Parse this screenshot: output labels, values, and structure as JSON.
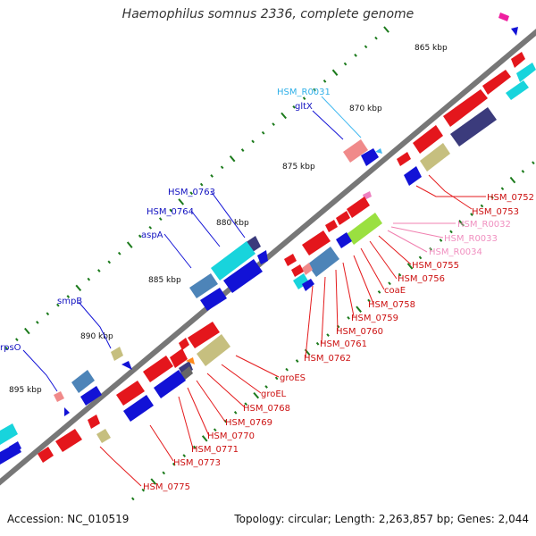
{
  "title": "Haemophilus somnus 2336, complete genome",
  "footer": {
    "accession": "Accession: NC_010519",
    "summary": "Topology: circular; Length: 2,263,857 bp; Genes: 2,044"
  },
  "colors": {
    "backbone": "#777777",
    "tick": "#1b7a1b",
    "red": "#e4161c",
    "blue": "#1212d6",
    "cyan": "#18d4dc",
    "steel": "#4d84b8",
    "navy": "#3b3b7c",
    "khaki": "#c6bf7f",
    "pink_gene": "#f08a8a",
    "rna_line": "#f080b0",
    "trna_line": "#40b8f0",
    "magenta": "#ee1fa0",
    "lime": "#9ae040"
  },
  "ticks": [
    "865 kbp",
    "870 kbp",
    "875 kbp",
    "880 kbp",
    "885 kbp",
    "890 kbp",
    "895 kbp"
  ],
  "labels_red": [
    "HSM_0752",
    "HSM_0753",
    "HSM_0755",
    "HSM_0756",
    "coaE",
    "HSM_0758",
    "HSM_0759",
    "HSM_0760",
    "HSM_0761",
    "HSM_0762",
    "groES",
    "groEL",
    "HSM_0768",
    "HSM_0769",
    "HSM_0770",
    "HSM_0771",
    "HSM_0773",
    "HSM_0775"
  ],
  "labels_pink": [
    "HSM_R0032",
    "HSM_R0033",
    "HSM_R0034"
  ],
  "labels_blue": [
    "gltX",
    "HSM_0763",
    "HSM_0764",
    "aspA",
    "smpB",
    "rpsO"
  ],
  "labels_cyan": [
    "HSM_R0031"
  ]
}
